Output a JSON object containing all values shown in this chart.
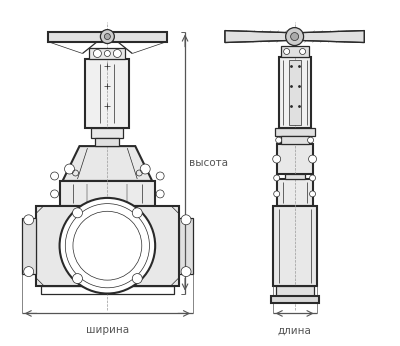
{
  "bg_color": "#ffffff",
  "lc": "#2a2a2a",
  "dc": "#555555",
  "fig_w": 4.0,
  "fig_h": 3.46,
  "dpi": 100,
  "label_v": "высота",
  "label_sh": "ширина",
  "label_dl": "длина",
  "fsize": 7.5
}
